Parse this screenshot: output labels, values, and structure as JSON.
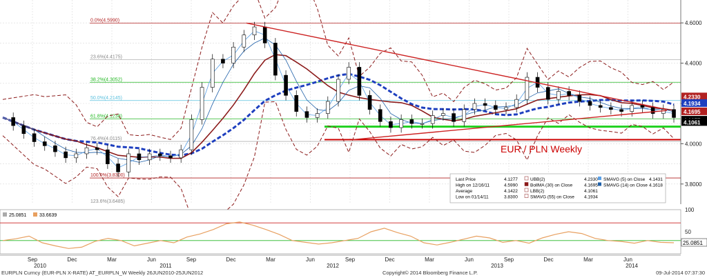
{
  "chart_data": [
    {
      "type": "line",
      "title": "EUR / PLN Weekly",
      "ylim": [
        3.7,
        4.7
      ],
      "yticks": [
        "4.6000",
        "4.4000",
        "4.2000",
        "4.0000",
        "3.8000"
      ],
      "price_labels": [
        {
          "text": "4.2330",
          "value": 4.233,
          "color": "#b22222"
        },
        {
          "text": "4.1934",
          "value": 4.1934,
          "color": "#1e3fbf"
        },
        {
          "text": "4.1695",
          "value": 4.1695,
          "color": "#b22222"
        },
        {
          "text": "4.1277",
          "value": 4.1277,
          "color": "#000000"
        },
        {
          "text": "4.1061",
          "value": 4.1061,
          "color": "#000000"
        }
      ],
      "fibonacci": [
        {
          "label": "0.0%(4.5990)",
          "value": 4.599,
          "color": "#b22222"
        },
        {
          "label": "23.6%(4.4175)",
          "value": 4.4175,
          "color": "#b0b0b0"
        },
        {
          "label": "38.2%(4.3052)",
          "value": 4.3052,
          "color": "#22b822"
        },
        {
          "label": "50.0%(4.2145)",
          "value": 4.2145,
          "color": "#5bc0de"
        },
        {
          "label": "61.8%(4.1238)",
          "value": 4.1238,
          "color": "#22b822"
        },
        {
          "label": "76.4%(4.0115)",
          "value": 4.0115,
          "color": "#b0b0b0"
        },
        {
          "label": "100.0%(3.8300)",
          "value": 3.83,
          "color": "#b22222"
        },
        {
          "label": "123.6%(3.6485)",
          "value": 3.6485,
          "color": "#b0b0b0"
        }
      ],
      "support_lines": [
        {
          "value": 4.085,
          "color": "#1fd11f",
          "width": 3
        },
        {
          "value": 4.02,
          "color": "#cc0000",
          "width": 2
        }
      ],
      "x_months": [
        "Sep",
        "Dec",
        "Mar",
        "Jun",
        "Sep",
        "Dec",
        "Mar",
        "Jun",
        "Sep",
        "Dec",
        "Mar",
        "Jun",
        "Sep",
        "Dec",
        "Mar",
        "Jun"
      ],
      "x_years": [
        "2010",
        "2011",
        "2012",
        "2013",
        "2014"
      ],
      "price_series": [
        4.13,
        4.09,
        4.05,
        4.01,
        3.99,
        3.96,
        3.93,
        3.95,
        3.98,
        3.97,
        3.9,
        3.86,
        3.95,
        3.92,
        3.95,
        3.94,
        3.93,
        3.97,
        4.12,
        4.28,
        4.42,
        4.4,
        4.48,
        4.54,
        4.58,
        4.5,
        4.34,
        4.24,
        4.16,
        4.13,
        4.15,
        4.21,
        4.32,
        4.38,
        4.24,
        4.17,
        4.11,
        4.08,
        4.12,
        4.1,
        4.1,
        4.14,
        4.15,
        4.11,
        4.17,
        4.2,
        4.19,
        4.17,
        4.18,
        4.22,
        4.33,
        4.28,
        4.22,
        4.26,
        4.24,
        4.21,
        4.19,
        4.18,
        4.17,
        4.16,
        4.19,
        4.18,
        4.15,
        4.17,
        4.13
      ],
      "series": [
        {
          "name": "SMAVG (5) on Close",
          "value_text": "4.1431",
          "color": "#5aa0e6"
        },
        {
          "name": "SMAVG (14) on Close",
          "value_text": "4.1618",
          "color": "#1e5fa8"
        },
        {
          "name": "BollMA (30) on Close",
          "value_text": "4.1695",
          "color": "#8b1a1a"
        },
        {
          "name": "SMAVG (55) on Close",
          "value_text": "4.1934",
          "color": "#1e3fbf"
        }
      ],
      "legend": {
        "rows": [
          [
            "Last Price",
            "4.1277"
          ],
          [
            "High on 12/16/11",
            "4.5990"
          ],
          [
            "Average",
            "4.1422"
          ],
          [
            "Low on 01/14/11",
            "3.8300"
          ]
        ],
        "mid_rows": [
          [
            "UBB(2)",
            "4.2330"
          ],
          [
            "BollMA (30) on Close",
            "4.1695"
          ],
          [
            "LBB(2)",
            "4.1061"
          ],
          [
            "SMAVG (55) on Close",
            "4.1934"
          ]
        ],
        "right_rows": [
          [
            "SMAVG (5) on Close",
            "4.1431"
          ],
          [
            "SMAVG (14) on Close",
            "4.1618"
          ]
        ]
      }
    },
    {
      "type": "line",
      "title": "",
      "ylim": [
        0,
        100
      ],
      "yticks": [
        "100",
        "50"
      ],
      "series": [
        {
          "name": "25.0851",
          "color": "#e8a060",
          "values": [
            30,
            34,
            40,
            25,
            18,
            12,
            15,
            28,
            35,
            30,
            18,
            24,
            30,
            25,
            38,
            45,
            55,
            68,
            72,
            65,
            55,
            44,
            30,
            26,
            22,
            25,
            30,
            35,
            50,
            58,
            48,
            40,
            25,
            20,
            26,
            33,
            40,
            36,
            26,
            30,
            24,
            36,
            44,
            50,
            46,
            35,
            30,
            28,
            24,
            30,
            26,
            25
          ]
        },
        {
          "name": "33.6639",
          "color": "#aaaaaa",
          "values": []
        }
      ],
      "last_label": "25.0851"
    }
  ],
  "footer": {
    "left": "EURPLN Curncy (EUR-PLN X-RATE) AT_EURPLN_W  Weekly 26JUN2010-25JUN2012",
    "center": "Copyright© 2014 Bloomberg Finance L.P.",
    "right": "09-Jul-2014 07:37:30"
  }
}
